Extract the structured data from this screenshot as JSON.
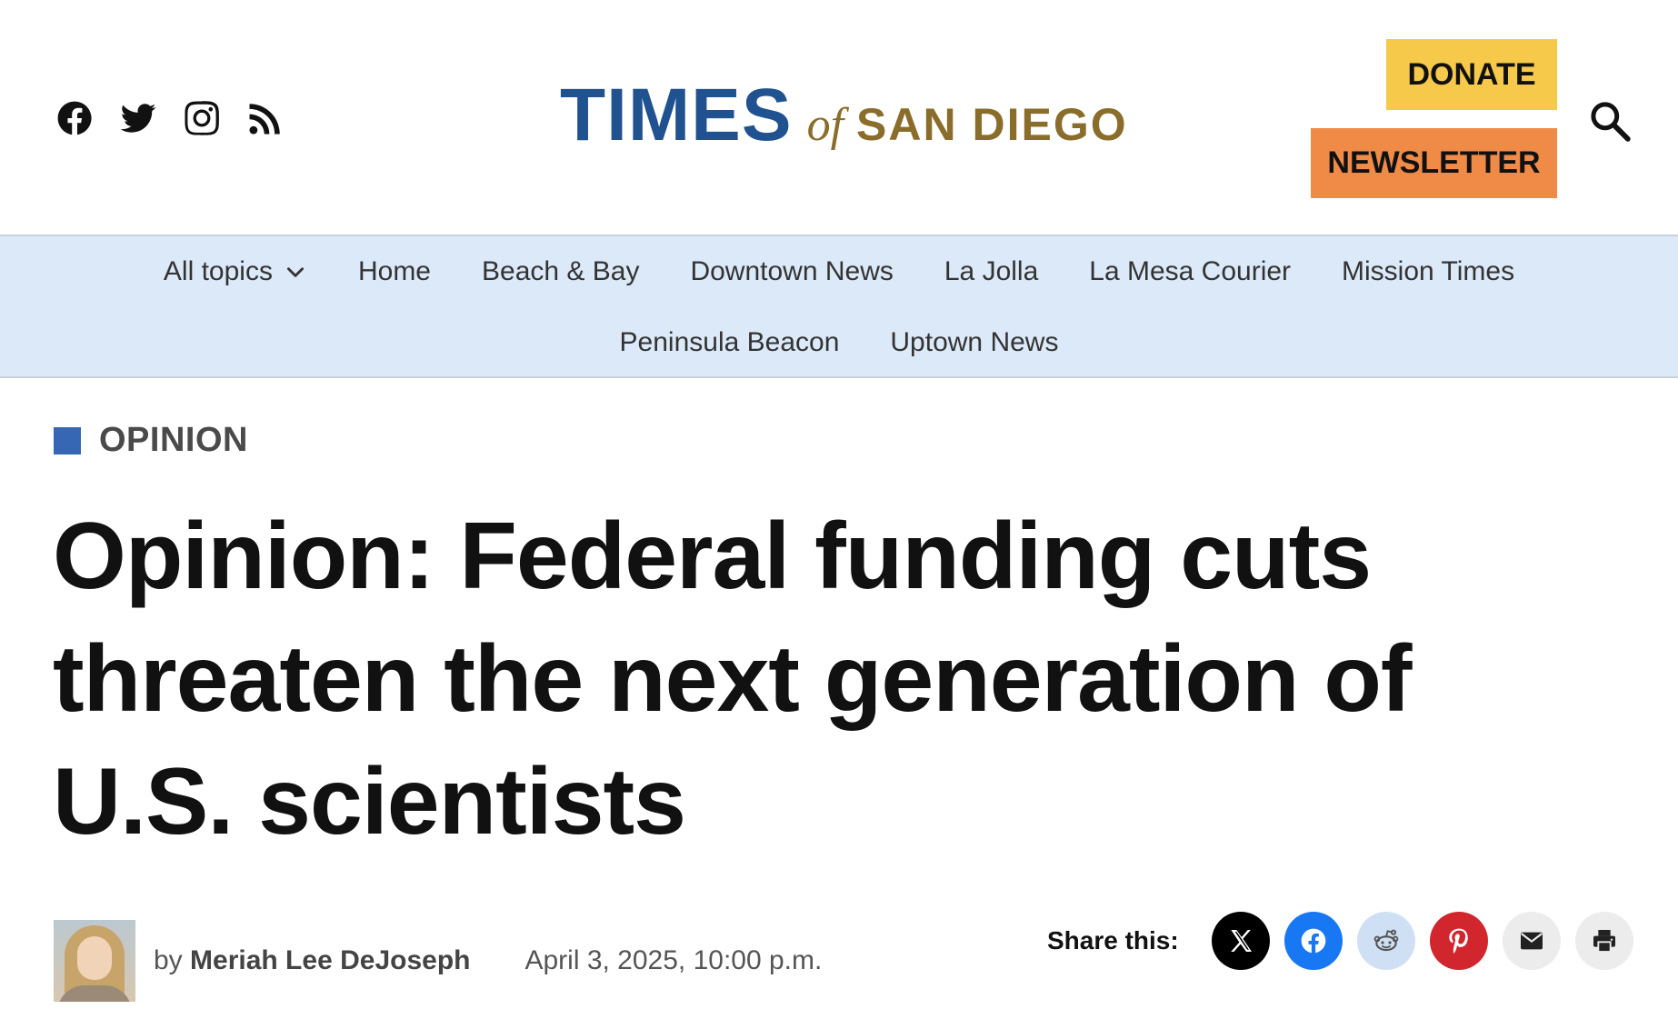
{
  "header": {
    "social_icons": [
      "facebook-icon",
      "twitter-icon",
      "instagram-icon",
      "rss-icon"
    ],
    "logo": {
      "times": "TIMES",
      "of": "of",
      "san_diego": "SAN DIEGO"
    },
    "donate_label": "DONATE",
    "newsletter_label": "NEWSLETTER",
    "colors": {
      "logo_blue": "#20528f",
      "logo_gold": "#8a6d2a",
      "donate": "#f6c94a",
      "newsletter": "#ef8a47"
    }
  },
  "nav": {
    "all_topics": "All topics",
    "row1": [
      "Home",
      "Beach & Bay",
      "Downtown News",
      "La Jolla",
      "La Mesa Courier",
      "Mission Times"
    ],
    "row2": [
      "Peninsula Beacon",
      "Uptown News"
    ],
    "background": "#dce9f8"
  },
  "article": {
    "category": "OPINION",
    "headline_lines": [
      "Opinion: Federal funding cuts",
      "threaten the next generation of",
      "U.S. scientists"
    ],
    "byline_prefix": "by",
    "author": "Meriah Lee DeJoseph",
    "date": "April 3, 2025, 10:00 p.m."
  },
  "share": {
    "label": "Share this:",
    "buttons": [
      "x-icon",
      "facebook-icon",
      "reddit-icon",
      "pinterest-icon",
      "email-icon",
      "print-icon"
    ]
  }
}
